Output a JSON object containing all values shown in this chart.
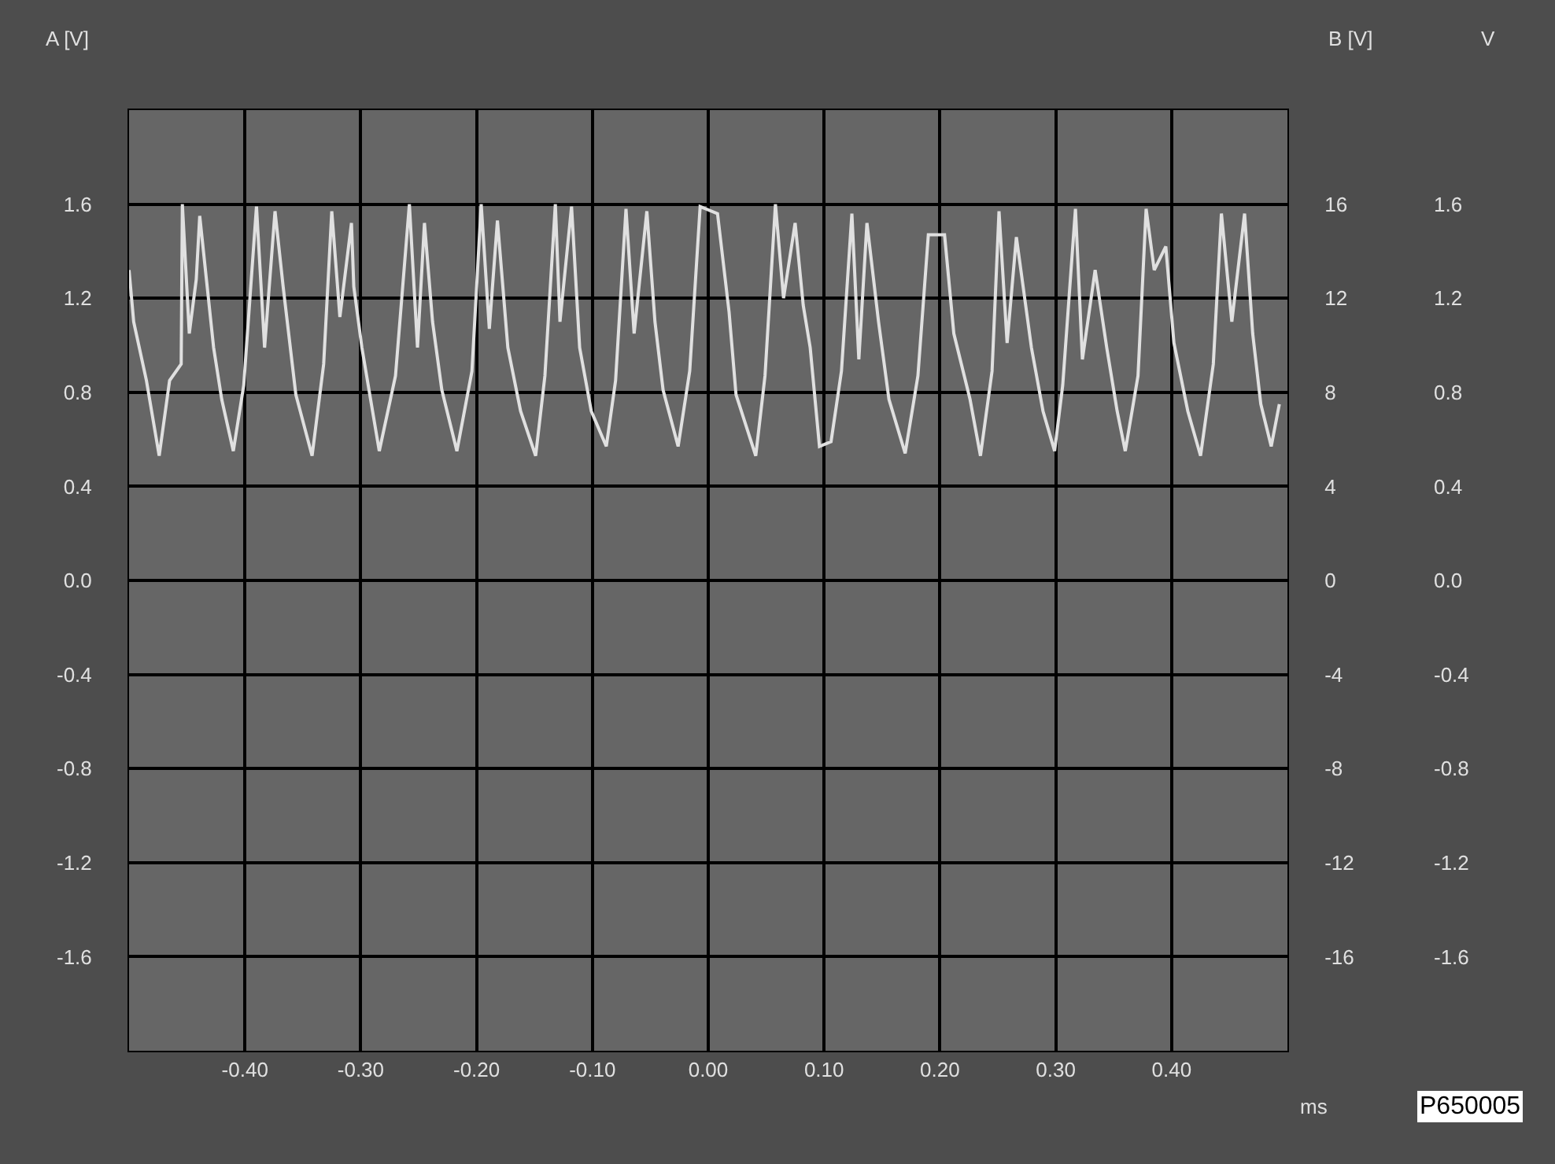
{
  "chart_data": {
    "type": "line",
    "xlabel": "ms",
    "ylabel": "A [V]",
    "y2label": "B [V]",
    "y3label": "V",
    "annotations": [
      "P650005"
    ],
    "xlim": [
      -0.5,
      0.5
    ],
    "xticks": [
      {
        "value": -0.4,
        "label": "-0.40"
      },
      {
        "value": -0.3,
        "label": "-0.30"
      },
      {
        "value": -0.2,
        "label": "-0.20"
      },
      {
        "value": -0.1,
        "label": "-0.10"
      },
      {
        "value": 0,
        "label": "0.00"
      },
      {
        "value": 0.1,
        "label": "0.10"
      },
      {
        "value": 0.2,
        "label": "0.20"
      },
      {
        "value": 0.3,
        "label": "0.30"
      },
      {
        "value": 0.4,
        "label": "0.40"
      }
    ],
    "ylim": [
      -2.0,
      2.0
    ],
    "yticks": [
      1.6,
      1.2,
      0.8,
      0.4,
      {
        "value": 0,
        "label": "0.0"
      },
      -0.4,
      -0.8,
      -1.2,
      -1.6
    ],
    "y2lim": [
      -20,
      20
    ],
    "y2ticks": [
      16,
      12,
      8,
      4,
      0,
      -4,
      -8,
      -12,
      -16
    ],
    "y3lim": [
      -2.0,
      2.0
    ],
    "y3ticks": [
      1.6,
      1.2,
      0.8,
      0.4,
      {
        "value": 0,
        "label": "0.0"
      },
      -0.4,
      -0.8,
      -1.2,
      -1.6
    ],
    "grid": true,
    "marker": "none",
    "line_style": "solid",
    "series": [
      {
        "color": "#e0e0e0",
        "x": [
          -0.5,
          -0.496,
          -0.485,
          -0.474,
          -0.465,
          -0.455,
          -0.454,
          -0.448,
          -0.442,
          -0.439,
          -0.433,
          -0.427,
          -0.42,
          -0.41,
          -0.401,
          -0.39,
          -0.383,
          -0.374,
          -0.367,
          -0.356,
          -0.342,
          -0.332,
          -0.325,
          -0.318,
          -0.308,
          -0.306,
          -0.299,
          -0.284,
          -0.27,
          -0.258,
          -0.251,
          -0.245,
          -0.238,
          -0.23,
          -0.217,
          -0.204,
          -0.196,
          -0.189,
          -0.182,
          -0.173,
          -0.162,
          -0.149,
          -0.141,
          -0.132,
          -0.128,
          -0.118,
          -0.111,
          -0.101,
          -0.088,
          -0.08,
          -0.071,
          -0.064,
          -0.053,
          -0.046,
          -0.039,
          -0.026,
          -0.016,
          -0.007,
          0.008,
          0.018,
          0.024,
          0.041,
          0.049,
          0.058,
          0.065,
          0.075,
          0.082,
          0.088,
          0.096,
          0.106,
          0.115,
          0.124,
          0.13,
          0.137,
          0.147,
          0.156,
          0.17,
          0.181,
          0.19,
          0.204,
          0.212,
          0.226,
          0.235,
          0.245,
          0.251,
          0.258,
          0.266,
          0.279,
          0.289,
          0.299,
          0.306,
          0.317,
          0.323,
          0.334,
          0.344,
          0.353,
          0.36,
          0.371,
          0.378,
          0.385,
          0.395,
          0.402,
          0.414,
          0.425,
          0.436,
          0.443,
          0.452,
          0.463,
          0.47,
          0.477,
          0.486,
          0.493
        ],
        "values": [
          1.32,
          1.1,
          0.85,
          0.53,
          0.85,
          0.92,
          1.6,
          1.05,
          1.28,
          1.55,
          1.27,
          0.99,
          0.77,
          0.55,
          0.83,
          1.59,
          0.99,
          1.57,
          1.25,
          0.79,
          0.53,
          0.92,
          1.57,
          1.12,
          1.52,
          1.25,
          0.99,
          0.55,
          0.87,
          1.6,
          0.99,
          1.52,
          1.1,
          0.81,
          0.55,
          0.89,
          1.6,
          1.07,
          1.53,
          0.99,
          0.72,
          0.53,
          0.87,
          1.6,
          1.1,
          1.59,
          0.99,
          0.72,
          0.57,
          0.85,
          1.58,
          1.05,
          1.57,
          1.1,
          0.81,
          0.57,
          0.89,
          1.59,
          1.56,
          1.14,
          0.79,
          0.53,
          0.87,
          1.6,
          1.2,
          1.52,
          1.17,
          0.99,
          0.57,
          0.59,
          0.89,
          1.56,
          0.94,
          1.52,
          1.1,
          0.77,
          0.54,
          0.87,
          1.47,
          1.47,
          1.05,
          0.77,
          0.53,
          0.89,
          1.57,
          1.01,
          1.46,
          0.99,
          0.72,
          0.55,
          0.83,
          1.58,
          0.94,
          1.32,
          0.99,
          0.72,
          0.55,
          0.87,
          1.58,
          1.32,
          1.42,
          1.01,
          0.72,
          0.53,
          0.92,
          1.56,
          1.1,
          1.56,
          1.05,
          0.75,
          0.57,
          0.75
        ]
      }
    ]
  }
}
